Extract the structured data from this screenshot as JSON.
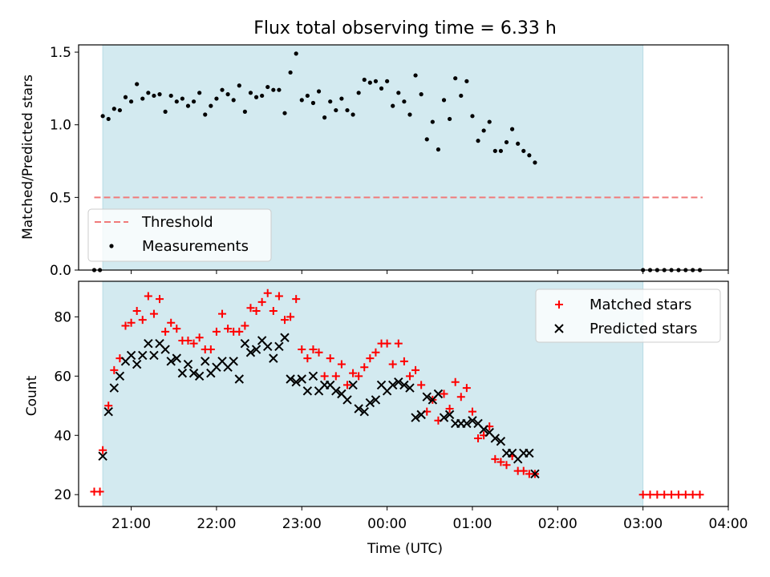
{
  "chart_data": [
    {
      "type": "scatter",
      "title": "Flux total observing time = 6.33 h",
      "xlabel": "",
      "ylabel": "Matched/Predicted stars",
      "ylim": [
        0,
        1.55
      ],
      "xlim": [
        "20:23",
        "04:00"
      ],
      "yticks": [
        0.0,
        0.5,
        1.0,
        1.5
      ],
      "shaded_interval": [
        "20:40",
        "03:00"
      ],
      "shade_color": "#d3eaf0",
      "legend_position": "lower-left",
      "threshold": {
        "name": "Threshold",
        "value": 0.5,
        "x_range": [
          "20:34",
          "03:42"
        ],
        "color": "#f07a7a",
        "style": "dashed"
      },
      "series": [
        {
          "name": "Measurements",
          "marker": "dot",
          "color": "#000000",
          "points": [
            [
              "20:34",
              0.0
            ],
            [
              "20:38",
              0.0
            ],
            [
              "20:40",
              1.06
            ],
            [
              "20:44",
              1.04
            ],
            [
              "20:48",
              1.11
            ],
            [
              "20:52",
              1.1
            ],
            [
              "20:56",
              1.19
            ],
            [
              "21:00",
              1.16
            ],
            [
              "21:04",
              1.28
            ],
            [
              "21:08",
              1.18
            ],
            [
              "21:12",
              1.22
            ],
            [
              "21:16",
              1.2
            ],
            [
              "21:20",
              1.21
            ],
            [
              "21:24",
              1.09
            ],
            [
              "21:28",
              1.2
            ],
            [
              "21:32",
              1.16
            ],
            [
              "21:36",
              1.18
            ],
            [
              "21:40",
              1.13
            ],
            [
              "21:44",
              1.16
            ],
            [
              "21:48",
              1.22
            ],
            [
              "21:52",
              1.07
            ],
            [
              "21:56",
              1.13
            ],
            [
              "22:00",
              1.18
            ],
            [
              "22:04",
              1.24
            ],
            [
              "22:08",
              1.21
            ],
            [
              "22:12",
              1.17
            ],
            [
              "22:16",
              1.27
            ],
            [
              "22:20",
              1.09
            ],
            [
              "22:24",
              1.22
            ],
            [
              "22:28",
              1.19
            ],
            [
              "22:32",
              1.2
            ],
            [
              "22:36",
              1.26
            ],
            [
              "22:40",
              1.24
            ],
            [
              "22:44",
              1.24
            ],
            [
              "22:48",
              1.08
            ],
            [
              "22:52",
              1.36
            ],
            [
              "22:56",
              1.49
            ],
            [
              "23:00",
              1.17
            ],
            [
              "23:04",
              1.2
            ],
            [
              "23:08",
              1.15
            ],
            [
              "23:12",
              1.23
            ],
            [
              "23:16",
              1.05
            ],
            [
              "23:20",
              1.16
            ],
            [
              "23:24",
              1.1
            ],
            [
              "23:28",
              1.18
            ],
            [
              "23:32",
              1.1
            ],
            [
              "23:36",
              1.07
            ],
            [
              "23:40",
              1.22
            ],
            [
              "23:44",
              1.31
            ],
            [
              "23:48",
              1.29
            ],
            [
              "23:52",
              1.3
            ],
            [
              "23:56",
              1.25
            ],
            [
              "00:00",
              1.3
            ],
            [
              "00:04",
              1.13
            ],
            [
              "00:08",
              1.22
            ],
            [
              "00:12",
              1.16
            ],
            [
              "00:16",
              1.07
            ],
            [
              "00:20",
              1.34
            ],
            [
              "00:24",
              1.21
            ],
            [
              "00:28",
              0.9
            ],
            [
              "00:32",
              1.02
            ],
            [
              "00:36",
              0.83
            ],
            [
              "00:40",
              1.17
            ],
            [
              "00:44",
              1.04
            ],
            [
              "00:48",
              1.32
            ],
            [
              "00:52",
              1.2
            ],
            [
              "00:56",
              1.3
            ],
            [
              "01:00",
              1.06
            ],
            [
              "01:04",
              0.89
            ],
            [
              "01:08",
              0.96
            ],
            [
              "01:12",
              1.02
            ],
            [
              "01:16",
              0.82
            ],
            [
              "01:20",
              0.82
            ],
            [
              "01:24",
              0.88
            ],
            [
              "01:28",
              0.97
            ],
            [
              "01:32",
              0.87
            ],
            [
              "01:36",
              0.82
            ],
            [
              "01:40",
              0.79
            ],
            [
              "01:44",
              0.74
            ],
            [
              "03:00",
              0.0
            ],
            [
              "03:05",
              0.0
            ],
            [
              "03:10",
              0.0
            ],
            [
              "03:15",
              0.0
            ],
            [
              "03:20",
              0.0
            ],
            [
              "03:25",
              0.0
            ],
            [
              "03:30",
              0.0
            ],
            [
              "03:35",
              0.0
            ],
            [
              "03:40",
              0.0
            ]
          ]
        }
      ]
    },
    {
      "type": "scatter",
      "title": "",
      "xlabel": "Time (UTC)",
      "ylabel": "Count",
      "ylim": [
        16,
        92
      ],
      "xlim": [
        "20:23",
        "04:00"
      ],
      "xticks": [
        "21:00",
        "22:00",
        "23:00",
        "00:00",
        "01:00",
        "02:00",
        "03:00",
        "04:00"
      ],
      "yticks": [
        20,
        40,
        60,
        80
      ],
      "shaded_interval": [
        "20:40",
        "03:00"
      ],
      "shade_color": "#d3eaf0",
      "legend_position": "top-right",
      "series": [
        {
          "name": "Matched stars",
          "marker": "plus",
          "color": "#ff0000",
          "points": [
            [
              "20:34",
              21
            ],
            [
              "20:38",
              21
            ],
            [
              "20:40",
              35
            ],
            [
              "20:44",
              50
            ],
            [
              "20:48",
              62
            ],
            [
              "20:52",
              66
            ],
            [
              "20:56",
              77
            ],
            [
              "21:00",
              78
            ],
            [
              "21:04",
              82
            ],
            [
              "21:08",
              79
            ],
            [
              "21:12",
              87
            ],
            [
              "21:16",
              81
            ],
            [
              "21:20",
              86
            ],
            [
              "21:24",
              75
            ],
            [
              "21:28",
              78
            ],
            [
              "21:32",
              76
            ],
            [
              "21:36",
              72
            ],
            [
              "21:40",
              72
            ],
            [
              "21:44",
              71
            ],
            [
              "21:48",
              73
            ],
            [
              "21:52",
              69
            ],
            [
              "21:56",
              69
            ],
            [
              "22:00",
              75
            ],
            [
              "22:04",
              81
            ],
            [
              "22:08",
              76
            ],
            [
              "22:12",
              75
            ],
            [
              "22:16",
              75
            ],
            [
              "22:20",
              77
            ],
            [
              "22:24",
              83
            ],
            [
              "22:28",
              82
            ],
            [
              "22:32",
              85
            ],
            [
              "22:36",
              88
            ],
            [
              "22:40",
              82
            ],
            [
              "22:44",
              87
            ],
            [
              "22:48",
              79
            ],
            [
              "22:52",
              80
            ],
            [
              "22:56",
              86
            ],
            [
              "23:00",
              69
            ],
            [
              "23:04",
              66
            ],
            [
              "23:08",
              69
            ],
            [
              "23:12",
              68
            ],
            [
              "23:16",
              60
            ],
            [
              "23:20",
              66
            ],
            [
              "23:24",
              60
            ],
            [
              "23:28",
              64
            ],
            [
              "23:32",
              57
            ],
            [
              "23:36",
              61
            ],
            [
              "23:40",
              60
            ],
            [
              "23:44",
              63
            ],
            [
              "23:48",
              66
            ],
            [
              "23:52",
              68
            ],
            [
              "23:56",
              71
            ],
            [
              "00:00",
              71
            ],
            [
              "00:04",
              64
            ],
            [
              "00:08",
              71
            ],
            [
              "00:12",
              65
            ],
            [
              "00:16",
              60
            ],
            [
              "00:20",
              62
            ],
            [
              "00:24",
              57
            ],
            [
              "00:28",
              48
            ],
            [
              "00:32",
              52
            ],
            [
              "00:36",
              45
            ],
            [
              "00:40",
              54
            ],
            [
              "00:44",
              49
            ],
            [
              "00:48",
              58
            ],
            [
              "00:52",
              53
            ],
            [
              "00:56",
              56
            ],
            [
              "01:00",
              48
            ],
            [
              "01:04",
              39
            ],
            [
              "01:08",
              40
            ],
            [
              "01:12",
              43
            ],
            [
              "01:16",
              32
            ],
            [
              "01:20",
              31
            ],
            [
              "01:24",
              30
            ],
            [
              "01:28",
              33
            ],
            [
              "01:32",
              28
            ],
            [
              "01:36",
              28
            ],
            [
              "01:40",
              27
            ],
            [
              "01:44",
              27
            ],
            [
              "03:00",
              20
            ],
            [
              "03:05",
              20
            ],
            [
              "03:10",
              20
            ],
            [
              "03:15",
              20
            ],
            [
              "03:20",
              20
            ],
            [
              "03:25",
              20
            ],
            [
              "03:30",
              20
            ],
            [
              "03:35",
              20
            ],
            [
              "03:40",
              20
            ]
          ]
        },
        {
          "name": "Predicted stars",
          "marker": "x",
          "color": "#000000",
          "points": [
            [
              "20:40",
              33
            ],
            [
              "20:44",
              48
            ],
            [
              "20:48",
              56
            ],
            [
              "20:52",
              60
            ],
            [
              "20:56",
              65
            ],
            [
              "21:00",
              67
            ],
            [
              "21:04",
              64
            ],
            [
              "21:08",
              67
            ],
            [
              "21:12",
              71
            ],
            [
              "21:16",
              67
            ],
            [
              "21:20",
              71
            ],
            [
              "21:24",
              69
            ],
            [
              "21:28",
              65
            ],
            [
              "21:32",
              66
            ],
            [
              "21:36",
              61
            ],
            [
              "21:40",
              64
            ],
            [
              "21:44",
              61
            ],
            [
              "21:48",
              60
            ],
            [
              "21:52",
              65
            ],
            [
              "21:56",
              61
            ],
            [
              "22:00",
              63
            ],
            [
              "22:04",
              65
            ],
            [
              "22:08",
              63
            ],
            [
              "22:12",
              65
            ],
            [
              "22:16",
              59
            ],
            [
              "22:20",
              71
            ],
            [
              "22:24",
              68
            ],
            [
              "22:28",
              69
            ],
            [
              "22:32",
              72
            ],
            [
              "22:36",
              70
            ],
            [
              "22:40",
              66
            ],
            [
              "22:44",
              70
            ],
            [
              "22:48",
              73
            ],
            [
              "22:52",
              59
            ],
            [
              "22:56",
              58
            ],
            [
              "23:00",
              59
            ],
            [
              "23:04",
              55
            ],
            [
              "23:08",
              60
            ],
            [
              "23:12",
              55
            ],
            [
              "23:16",
              57
            ],
            [
              "23:20",
              57
            ],
            [
              "23:24",
              55
            ],
            [
              "23:28",
              54
            ],
            [
              "23:32",
              52
            ],
            [
              "23:36",
              57
            ],
            [
              "23:40",
              49
            ],
            [
              "23:44",
              48
            ],
            [
              "23:48",
              51
            ],
            [
              "23:52",
              52
            ],
            [
              "23:56",
              57
            ],
            [
              "00:00",
              55
            ],
            [
              "00:04",
              57
            ],
            [
              "00:08",
              58
            ],
            [
              "00:12",
              57
            ],
            [
              "00:16",
              56
            ],
            [
              "00:20",
              46
            ],
            [
              "00:24",
              47
            ],
            [
              "00:28",
              53
            ],
            [
              "00:32",
              52
            ],
            [
              "00:36",
              54
            ],
            [
              "00:40",
              46
            ],
            [
              "00:44",
              47
            ],
            [
              "00:48",
              44
            ],
            [
              "00:52",
              44
            ],
            [
              "00:56",
              44
            ],
            [
              "01:00",
              45
            ],
            [
              "01:04",
              44
            ],
            [
              "01:08",
              42
            ],
            [
              "01:12",
              41
            ],
            [
              "01:16",
              39
            ],
            [
              "01:20",
              38
            ],
            [
              "01:24",
              34
            ],
            [
              "01:28",
              34
            ],
            [
              "01:32",
              32
            ],
            [
              "01:36",
              34
            ],
            [
              "01:40",
              34
            ],
            [
              "01:44",
              27
            ]
          ]
        }
      ]
    }
  ]
}
